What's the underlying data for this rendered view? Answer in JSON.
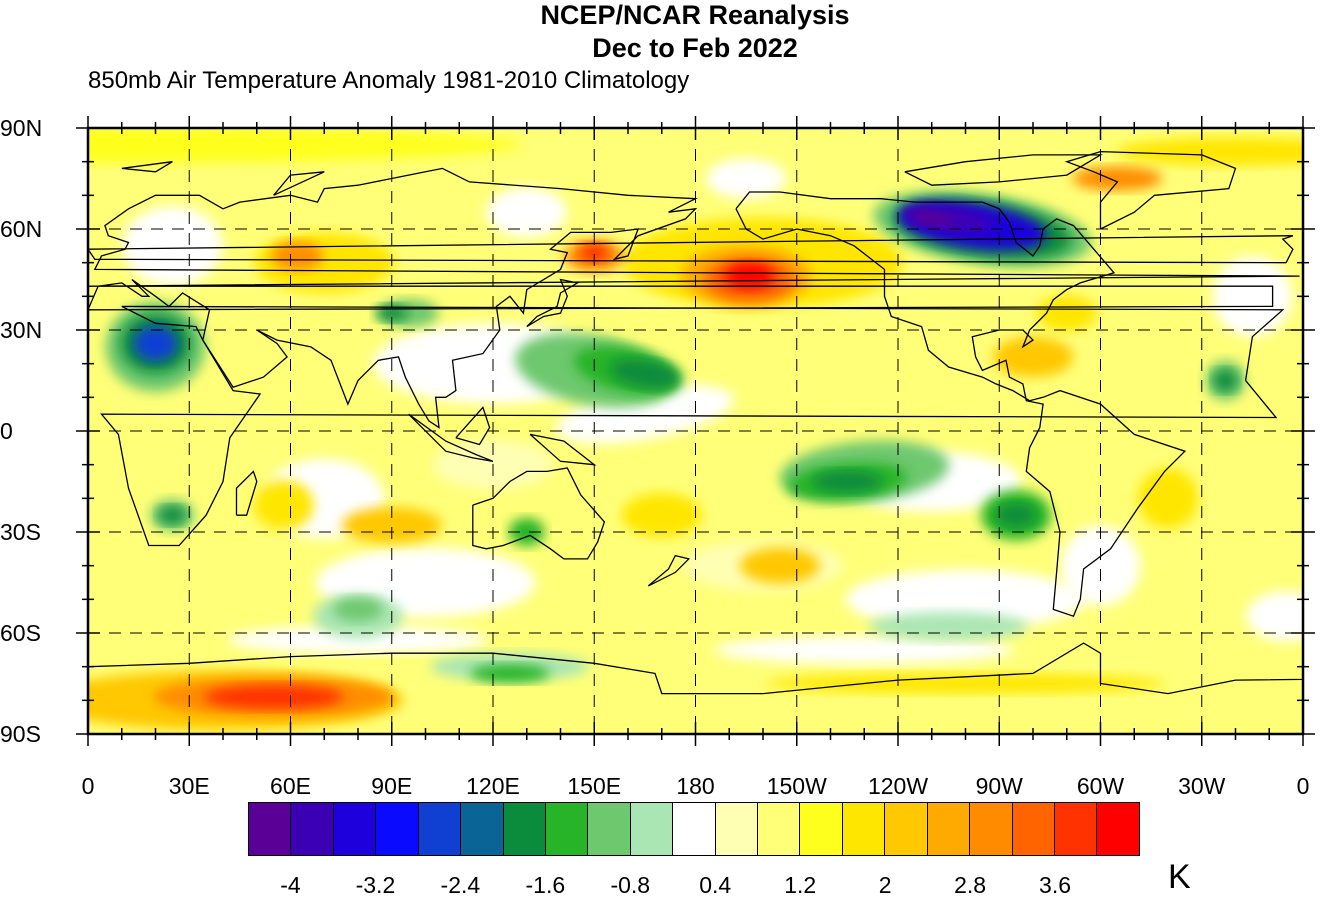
{
  "header": {
    "title_line1": "NCEP/NCAR Reanalysis",
    "title_line2": "Dec to Feb 2022",
    "subtitle": "850mb Air Temperature Anomaly  1981-2010 Climatology"
  },
  "map": {
    "projection": "cylindrical equidistant",
    "lat_range": [
      -90,
      90
    ],
    "lon_range": [
      0,
      360
    ],
    "lat_labels": [
      "90N",
      "60N",
      "30N",
      "0",
      "30S",
      "60S",
      "90S"
    ],
    "lon_labels": [
      "0",
      "30E",
      "60E",
      "90E",
      "120E",
      "150E",
      "180",
      "150W",
      "120W",
      "90W",
      "60W",
      "30W",
      "0"
    ],
    "gridlines": "dashed, every 30 degrees",
    "coastlines": true
  },
  "colorbar": {
    "unit": "K",
    "tick_labels": [
      "-4",
      "-3.2",
      "-2.4",
      "-1.6",
      "-0.8",
      "0.4",
      "1.2",
      "2",
      "2.8",
      "3.6"
    ],
    "colors": [
      "#5a0096",
      "#3c00b4",
      "#1e00dc",
      "#0a0aff",
      "#1040d2",
      "#0a6496",
      "#0a8c3c",
      "#28b428",
      "#6ec86e",
      "#aae6b4",
      "#ffffff",
      "#ffffb4",
      "#ffff78",
      "#ffff1e",
      "#ffe600",
      "#ffc800",
      "#ffaa00",
      "#ff8c00",
      "#ff6400",
      "#ff3200",
      "#ff0000"
    ]
  },
  "features": [
    {
      "name": "cold anomaly over northern Canada / Hudson Bay",
      "lon": [
        240,
        300
      ],
      "lat": [
        45,
        70
      ],
      "min_anomaly": -4
    },
    {
      "name": "warm anomaly North Pacific",
      "lon": [
        165,
        220
      ],
      "lat": [
        35,
        60
      ],
      "max_anomaly": 3.6
    },
    {
      "name": "warm anomaly off Antarctica near 40-80E",
      "lon": [
        20,
        100
      ],
      "lat": [
        -85,
        -70
      ],
      "max_anomaly": 3.6
    },
    {
      "name": "cold anomaly Sahara / Arabia",
      "lon": [
        5,
        35
      ],
      "lat": [
        10,
        35
      ],
      "min_anomaly": -2.4
    },
    {
      "name": "cool tropical Pacific band",
      "lon": [
        140,
        280
      ],
      "lat": [
        -30,
        30
      ],
      "min_anomaly": -1.6
    }
  ]
}
